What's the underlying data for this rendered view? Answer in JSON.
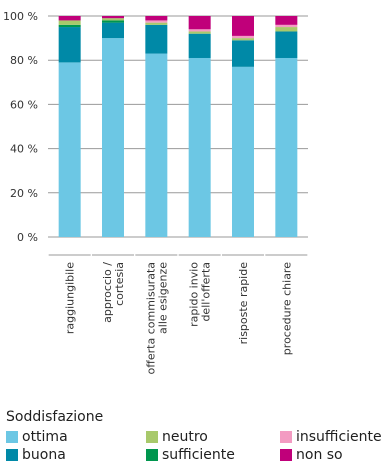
{
  "chart_data": {
    "type": "bar",
    "stacked": true,
    "categories": [
      "raggiungibile",
      "approccio / cortesia",
      "offerta commisurata alle esigenze",
      "rapido invio dell'offerta",
      "risposte rapide",
      "procedure chiare"
    ],
    "category_lines": [
      [
        "raggiungibile"
      ],
      [
        "approccio /",
        "cortesia"
      ],
      [
        "offerta commisurata",
        "alle esigenze"
      ],
      [
        "rapido invio",
        "dell'offerta"
      ],
      [
        "risposte rapide"
      ],
      [
        "procedure chiare"
      ]
    ],
    "series": [
      {
        "name": "ottima",
        "color": "#6CC7E4",
        "values": [
          79,
          90,
          83,
          81,
          77,
          81
        ]
      },
      {
        "name": "buona",
        "color": "#0089A7",
        "values": [
          16,
          7,
          13,
          11,
          12,
          12
        ]
      },
      {
        "name": "sufficiente",
        "color": "#00964E",
        "values": [
          1,
          1,
          0,
          0,
          0,
          0
        ]
      },
      {
        "name": "neutro",
        "color": "#A8C96B",
        "values": [
          2,
          1,
          1,
          1,
          1,
          2
        ]
      },
      {
        "name": "insufficiente",
        "color": "#F39BC2",
        "values": [
          0,
          0,
          1,
          1,
          1,
          1
        ]
      },
      {
        "name": "non so",
        "color": "#C0007A",
        "values": [
          2,
          1,
          2,
          6,
          9,
          4
        ]
      }
    ],
    "y_ticks": [
      "0 %",
      "20 %",
      "40 %",
      "60 %",
      "80 %",
      "100 %"
    ],
    "ylim": [
      0,
      100
    ],
    "grid": true,
    "legend_title": "Soddisfazione",
    "legend_position": "bottom"
  }
}
